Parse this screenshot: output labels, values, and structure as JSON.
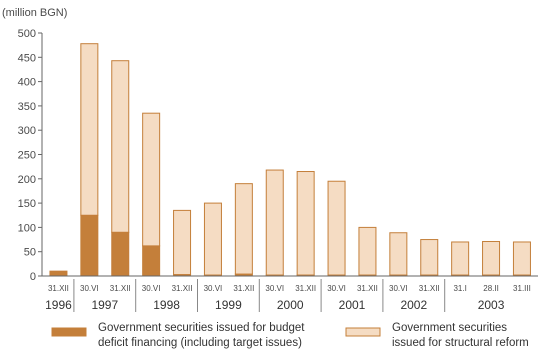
{
  "chart_data": {
    "type": "bar",
    "stacked": true,
    "unit_label": "(million BGN)",
    "ylim": [
      0,
      500
    ],
    "yticks": [
      0,
      50,
      100,
      150,
      200,
      250,
      300,
      350,
      400,
      450,
      500
    ],
    "categories": [
      "31.XII",
      "30.VI",
      "31.XII",
      "30.VI",
      "31.XII",
      "30.VI",
      "31.XII",
      "30.VI",
      "31.XII",
      "30.VI",
      "31.XII",
      "30.VI",
      "31.XII",
      "31.I",
      "28.II",
      "31.III"
    ],
    "years": [
      {
        "label": "1996",
        "from": 0,
        "to": 0
      },
      {
        "label": "1997",
        "from": 1,
        "to": 2
      },
      {
        "label": "1998",
        "from": 3,
        "to": 4
      },
      {
        "label": "1999",
        "from": 5,
        "to": 6
      },
      {
        "label": "2000",
        "from": 7,
        "to": 8
      },
      {
        "label": "2001",
        "from": 9,
        "to": 10
      },
      {
        "label": "2002",
        "from": 11,
        "to": 12
      },
      {
        "label": "2003",
        "from": 13,
        "to": 15
      }
    ],
    "series": [
      {
        "name": "Government securities issued for budget deficit financing (including target issues)",
        "legend_lines": [
          "Government securities issued for budget",
          "deficit financing (including target issues)"
        ],
        "color": "#c47f3a",
        "values": [
          10,
          125,
          90,
          62,
          3,
          2,
          4,
          2,
          2,
          2,
          2,
          2,
          2,
          2,
          2,
          2
        ]
      },
      {
        "name": "Government securities issued for structural reform",
        "legend_lines": [
          "Government securities",
          "issued for structural reform"
        ],
        "color": "#f5dcc3",
        "values": [
          0,
          353,
          353,
          273,
          132,
          148,
          186,
          216,
          213,
          193,
          98,
          87,
          73,
          68,
          69,
          68
        ]
      }
    ],
    "grid": false,
    "legend_position": "bottom"
  }
}
